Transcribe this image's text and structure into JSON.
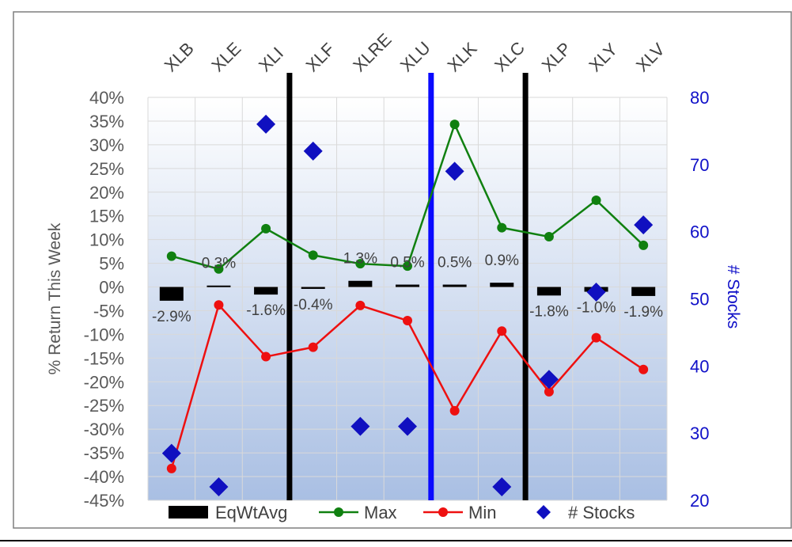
{
  "chart_data": {
    "type": "line",
    "categories": [
      "XLB",
      "XLE",
      "XLI",
      "XLF",
      "XLRE",
      "XLU",
      "XLK",
      "XLC",
      "XLP",
      "XLY",
      "XLV"
    ],
    "series": [
      {
        "name": "EqWtAvg",
        "kind": "bar",
        "axis": "left",
        "color": "#000000",
        "values": [
          -2.9,
          0.3,
          -1.6,
          -0.4,
          1.3,
          0.5,
          0.5,
          0.9,
          -1.8,
          -1.0,
          -1.9
        ]
      },
      {
        "name": "Max",
        "kind": "line",
        "axis": "left",
        "color": "#108010",
        "values": [
          6.5,
          3.8,
          12.3,
          6.7,
          4.9,
          4.4,
          34.3,
          12.5,
          10.6,
          18.3,
          8.8
        ]
      },
      {
        "name": "Min",
        "kind": "line",
        "axis": "left",
        "color": "#ee1010",
        "values": [
          -38.3,
          -3.8,
          -14.7,
          -12.7,
          -3.9,
          -7.1,
          -26.1,
          -9.3,
          -22.1,
          -10.7,
          -17.4
        ]
      },
      {
        "name": "# Stocks",
        "kind": "scatter",
        "axis": "right",
        "color": "#1010c0",
        "values": [
          27,
          22,
          76,
          72,
          31,
          31,
          69,
          22,
          38,
          51,
          61
        ]
      }
    ],
    "data_labels": [
      "-2.9%",
      "0.3%",
      "-1.6%",
      "-0.4%",
      "1.3%",
      "0.5%",
      "0.5%",
      "0.9%",
      "-1.8%",
      "-1.0%",
      "-1.9%"
    ],
    "ylabel": "% Return This Week",
    "ylabel_right": "# Stocks",
    "ylim": [
      -45,
      40
    ],
    "ylim_right": [
      20,
      80
    ],
    "yticks": [
      "40%",
      "35%",
      "30%",
      "25%",
      "20%",
      "15%",
      "10%",
      "5%",
      "0%",
      "-5%",
      "-10%",
      "-15%",
      "-20%",
      "-25%",
      "-30%",
      "-35%",
      "-40%",
      "-45%"
    ],
    "yticks_right": [
      "80",
      "70",
      "60",
      "50",
      "40",
      "30",
      "20"
    ],
    "dividers": [
      {
        "after_category": "XLI",
        "color": "#000000"
      },
      {
        "after_category": "XLU",
        "color": "#0a0aff"
      },
      {
        "after_category": "XLC",
        "color": "#000000"
      }
    ],
    "legend": {
      "position": "bottom",
      "entries": [
        "EqWtAvg",
        "Max",
        "Min",
        "# Stocks"
      ]
    },
    "grid": true
  }
}
